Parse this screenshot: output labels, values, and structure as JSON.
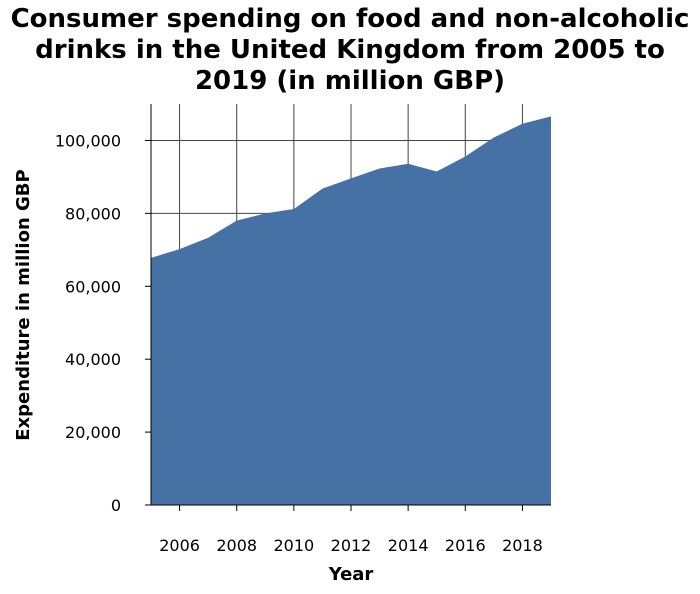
{
  "chart_data": {
    "type": "area",
    "title": "Consumer spending on food and non-alcoholic drinks in the United Kingdom from 2005 to 2019 (in million GBP)",
    "title_lines": [
      "Consumer spending on food and non-alcoholic",
      "drinks in the United Kingdom from 2005 to",
      "2019 (in million GBP)"
    ],
    "xlabel": "Year",
    "ylabel": "Expenditure in million GBP",
    "xlim": [
      2005,
      2019
    ],
    "ylim": [
      0,
      110000
    ],
    "x_ticks": [
      2006,
      2008,
      2010,
      2012,
      2014,
      2016,
      2018
    ],
    "x_tick_labels": [
      "2006",
      "2008",
      "2010",
      "2012",
      "2014",
      "2016",
      "2018"
    ],
    "y_ticks": [
      0,
      20000,
      40000,
      60000,
      80000,
      100000
    ],
    "y_tick_labels": [
      "0",
      "20,000",
      "40,000",
      "60,000",
      "80,000",
      "100,000"
    ],
    "grid": true,
    "fill_color": "#4571a5",
    "series": [
      {
        "x": [
          2005,
          2006,
          2007,
          2008,
          2009,
          2010,
          2011,
          2012,
          2013,
          2014,
          2015,
          2016,
          2017,
          2018,
          2019
        ],
        "values": [
          67800,
          70200,
          73300,
          78000,
          80000,
          81200,
          86800,
          89600,
          92300,
          93600,
          91500,
          95600,
          100800,
          104600,
          106600
        ]
      }
    ]
  }
}
